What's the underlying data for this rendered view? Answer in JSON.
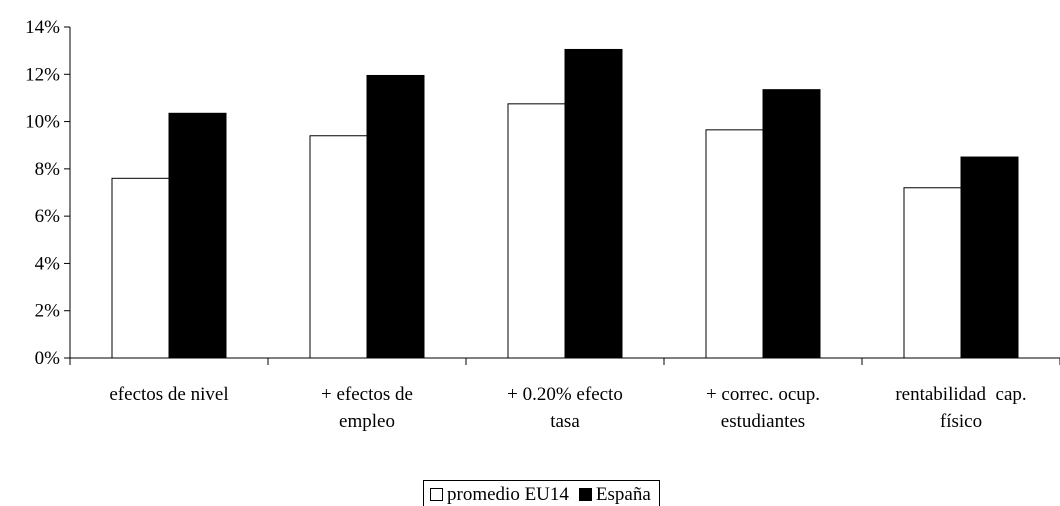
{
  "chart_data": {
    "type": "bar",
    "title": "",
    "xlabel": "",
    "ylabel": "",
    "ylim": [
      0,
      0.14
    ],
    "yticks": [
      0,
      0.02,
      0.04,
      0.06,
      0.08,
      0.1,
      0.12,
      0.14
    ],
    "ytick_labels": [
      "0%",
      "2%",
      "4%",
      "6%",
      "8%",
      "10%",
      "12%",
      "14%"
    ],
    "categories": [
      [
        "efectos de nivel"
      ],
      [
        "+ efectos de",
        "empleo"
      ],
      [
        "+ 0.20% efecto",
        "tasa"
      ],
      [
        "+ correc. ocup.",
        "estudiantes"
      ],
      [
        "rentabilidad  cap.",
        "físico"
      ]
    ],
    "series": [
      {
        "name": "promedio EU14",
        "color": "#ffffff",
        "values": [
          0.076,
          0.094,
          0.1075,
          0.0965,
          0.072
        ]
      },
      {
        "name": "España",
        "color": "#000000",
        "values": [
          0.1035,
          0.1195,
          0.1305,
          0.1135,
          0.085
        ]
      }
    ],
    "grid": false,
    "legend_position": "bottom"
  }
}
